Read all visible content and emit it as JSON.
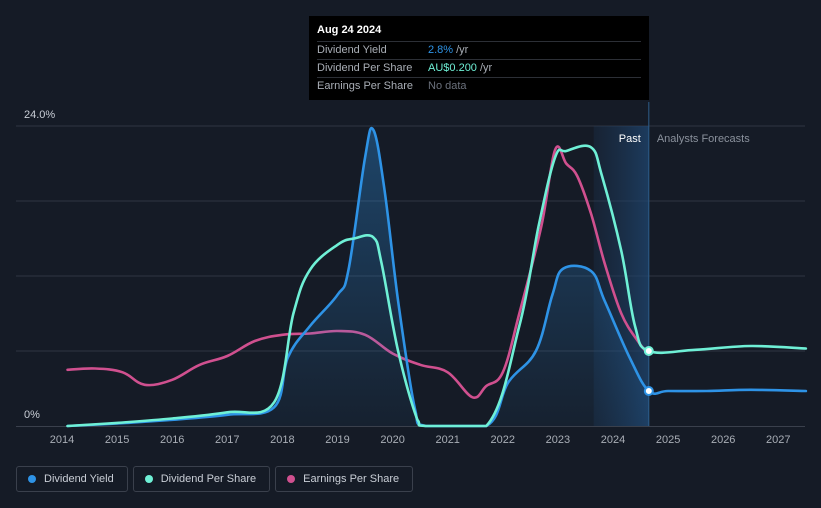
{
  "tooltip": {
    "date": "Aug 24 2024",
    "rows": [
      {
        "label": "Dividend Yield",
        "value": "2.8%",
        "unit": "/yr",
        "color": "#2e93e6"
      },
      {
        "label": "Dividend Per Share",
        "value": "AU$0.200",
        "unit": "/yr",
        "color": "#6ff0d6"
      },
      {
        "label": "Earnings Per Share",
        "value": "No data",
        "unit": "",
        "color": "#6b717c"
      }
    ]
  },
  "regions": {
    "past_label": "Past",
    "forecast_label": "Analysts Forecasts"
  },
  "legend": [
    {
      "label": "Dividend Yield",
      "color": "#2e93e6"
    },
    {
      "label": "Dividend Per Share",
      "color": "#6ff0d6"
    },
    {
      "label": "Earnings Per Share",
      "color": "#d0508f"
    }
  ],
  "chart_data": {
    "type": "line",
    "y_tick_labels": [
      "24.0%",
      "0%"
    ],
    "ylim": [
      0,
      24
    ],
    "xlim": [
      2013.7,
      2027.5
    ],
    "x_ticks": [
      "2014",
      "2015",
      "2016",
      "2017",
      "2018",
      "2019",
      "2020",
      "2021",
      "2022",
      "2023",
      "2024",
      "2025",
      "2026",
      "2027"
    ],
    "past_start": 2023.65,
    "today": 2024.65,
    "grid": true,
    "legend_position": "bottom-left",
    "series": [
      {
        "name": "Dividend Yield",
        "color": "#2e93e6",
        "fill": true,
        "points": [
          [
            2014.1,
            0
          ],
          [
            2015,
            0.2
          ],
          [
            2016,
            0.5
          ],
          [
            2017,
            0.9
          ],
          [
            2017.85,
            1.5
          ],
          [
            2018.1,
            5.5
          ],
          [
            2018.5,
            8
          ],
          [
            2019.0,
            10.5
          ],
          [
            2019.2,
            12.5
          ],
          [
            2019.5,
            21.5
          ],
          [
            2019.65,
            23.7
          ],
          [
            2019.85,
            19
          ],
          [
            2020.1,
            10
          ],
          [
            2020.4,
            1.5
          ],
          [
            2020.6,
            0
          ],
          [
            2021.7,
            0
          ],
          [
            2022.1,
            3.5
          ],
          [
            2022.6,
            6
          ],
          [
            2022.9,
            10.5
          ],
          [
            2023.1,
            12.6
          ],
          [
            2023.6,
            12.4
          ],
          [
            2023.85,
            10
          ],
          [
            2024.3,
            5.5
          ],
          [
            2024.65,
            2.8
          ],
          [
            2025,
            2.8
          ],
          [
            2025.7,
            2.8
          ],
          [
            2026.5,
            2.9
          ],
          [
            2027.5,
            2.8
          ]
        ]
      },
      {
        "name": "Dividend Per Share",
        "color": "#6ff0d6",
        "fill": false,
        "points": [
          [
            2014.1,
            0
          ],
          [
            2015,
            0.25
          ],
          [
            2016,
            0.6
          ],
          [
            2017,
            1.1
          ],
          [
            2017.85,
            1.9
          ],
          [
            2018.2,
            9
          ],
          [
            2018.5,
            12.5
          ],
          [
            2019.0,
            14.5
          ],
          [
            2019.3,
            15
          ],
          [
            2019.65,
            15.1
          ],
          [
            2019.8,
            13
          ],
          [
            2020.1,
            6
          ],
          [
            2020.45,
            0.5
          ],
          [
            2020.6,
            0
          ],
          [
            2021.7,
            0
          ],
          [
            2022.3,
            8
          ],
          [
            2022.65,
            16
          ],
          [
            2022.95,
            21.5
          ],
          [
            2023.15,
            22
          ],
          [
            2023.6,
            22.3
          ],
          [
            2023.8,
            20
          ],
          [
            2024.15,
            14
          ],
          [
            2024.4,
            8
          ],
          [
            2024.65,
            6.0
          ],
          [
            2025.5,
            6.1
          ],
          [
            2026.5,
            6.4
          ],
          [
            2027.5,
            6.2
          ]
        ]
      },
      {
        "name": "Earnings Per Share",
        "color": "#d0508f",
        "fill": false,
        "points": [
          [
            2014.1,
            4.5
          ],
          [
            2014.6,
            4.6
          ],
          [
            2015.1,
            4.3
          ],
          [
            2015.5,
            3.3
          ],
          [
            2016,
            3.7
          ],
          [
            2016.5,
            4.9
          ],
          [
            2017,
            5.6
          ],
          [
            2017.5,
            6.8
          ],
          [
            2018,
            7.3
          ],
          [
            2018.5,
            7.4
          ],
          [
            2019,
            7.6
          ],
          [
            2019.5,
            7.3
          ],
          [
            2020,
            5.8
          ],
          [
            2020.5,
            4.9
          ],
          [
            2021,
            4.3
          ],
          [
            2021.45,
            2.3
          ],
          [
            2021.7,
            3.2
          ],
          [
            2022,
            4.3
          ],
          [
            2022.3,
            9
          ],
          [
            2022.7,
            16
          ],
          [
            2022.95,
            22.1
          ],
          [
            2023.15,
            21
          ],
          [
            2023.35,
            20
          ],
          [
            2023.6,
            17
          ],
          [
            2023.85,
            13
          ],
          [
            2024.15,
            9
          ],
          [
            2024.45,
            6.8
          ],
          [
            2024.65,
            5.7
          ]
        ]
      }
    ]
  }
}
